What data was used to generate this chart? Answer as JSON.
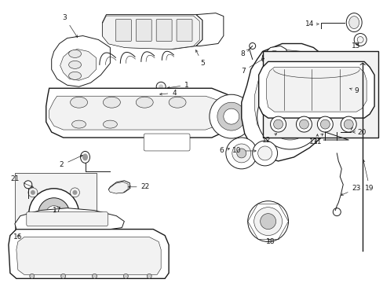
{
  "bg_color": "#ffffff",
  "line_color": "#1a1a1a",
  "gray_fill": "#e8e8e8",
  "light_gray": "#f2f2f2",
  "mid_gray": "#cccccc",
  "dark_gray": "#999999"
}
